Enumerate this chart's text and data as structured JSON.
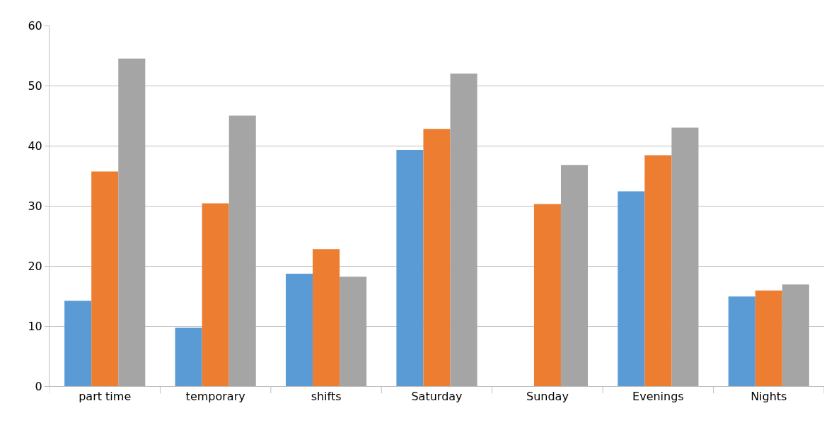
{
  "chart_data": {
    "type": "bar",
    "categories": [
      "part time",
      "temporary",
      "shifts",
      "Saturday",
      "Sunday",
      "Evenings",
      "Nights"
    ],
    "series": [
      {
        "color": "#5b9bd5",
        "values": [
          14.2,
          9.7,
          18.7,
          39.3,
          0,
          32.4,
          14.9
        ]
      },
      {
        "color": "#ed7d31",
        "values": [
          35.7,
          30.4,
          22.8,
          42.8,
          30.3,
          38.4,
          15.9
        ]
      },
      {
        "color": "#a5a5a5",
        "values": [
          54.5,
          45.0,
          18.2,
          52.0,
          36.8,
          43.0,
          16.9
        ]
      }
    ],
    "ylim": [
      0,
      60
    ],
    "yticks": [
      0,
      10,
      20,
      30,
      40,
      50,
      60
    ],
    "grid": "y"
  }
}
